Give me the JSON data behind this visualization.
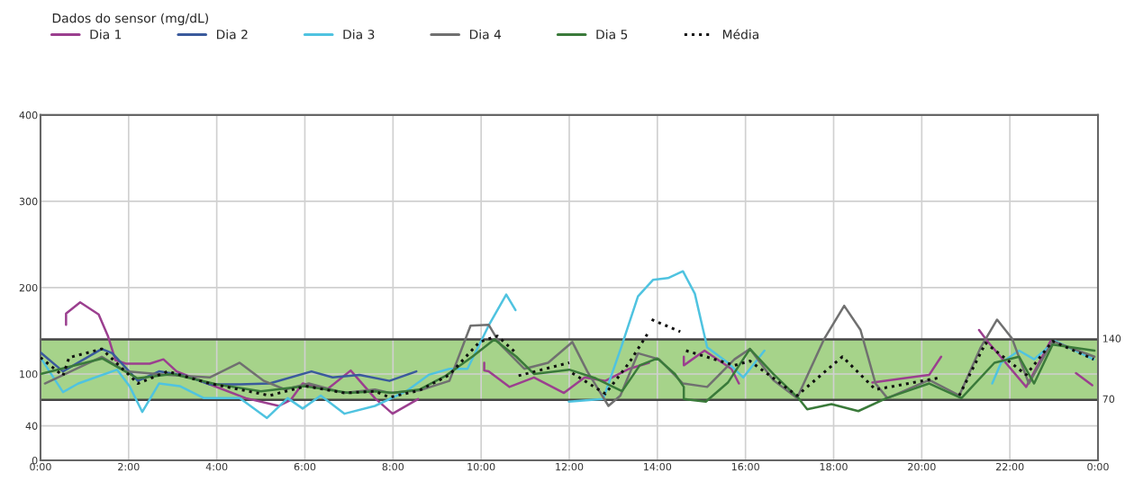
{
  "chart_data": {
    "type": "line",
    "title": "Dados do sensor (mg/dL)",
    "xlim": [
      0,
      24
    ],
    "ylim": [
      0,
      400
    ],
    "xticks": [
      {
        "value": 0,
        "label": "0:00"
      },
      {
        "value": 2,
        "label": "2:00"
      },
      {
        "value": 4,
        "label": "4:00"
      },
      {
        "value": 6,
        "label": "6:00"
      },
      {
        "value": 8,
        "label": "8:00"
      },
      {
        "value": 10,
        "label": "10:00"
      },
      {
        "value": 12,
        "label": "12:00"
      },
      {
        "value": 14,
        "label": "14:00"
      },
      {
        "value": 16,
        "label": "16:00"
      },
      {
        "value": 18,
        "label": "18:00"
      },
      {
        "value": 20,
        "label": "20:00"
      },
      {
        "value": 22,
        "label": "22:00"
      },
      {
        "value": 24,
        "label": "0:00"
      }
    ],
    "yticks": [
      0,
      40,
      100,
      200,
      300,
      400
    ],
    "grid": true,
    "legend": "top",
    "marker": "none",
    "bands": [
      {
        "axis": "y",
        "from": 70,
        "to": 140,
        "color": "#a6d38a"
      }
    ],
    "ref_lines": [
      {
        "axis": "y",
        "value": 140,
        "label": "140",
        "color": "#444444"
      },
      {
        "axis": "y",
        "value": 70,
        "label": "70",
        "color": "#444444"
      }
    ],
    "series": [
      {
        "name": "Dia 1",
        "color": "#9b3f8f",
        "line_style": "solid",
        "x": [
          0.58,
          0.58,
          0.9,
          1.32,
          1.53,
          1.7,
          1.94,
          2.48,
          2.79,
          3.09,
          3.84,
          4.66,
          5.41,
          5.68,
          5.95,
          6.5,
          7.04,
          7.59,
          7.99,
          8.57,
          8.6,
          10.07,
          10.07,
          10.17,
          10.64,
          11.2,
          11.88,
          12.35,
          12.82,
          13.36,
          13.81,
          13.85,
          14.6,
          14.6,
          15.07,
          15.68,
          15.85,
          15.9,
          18.88,
          20.17,
          20.44,
          20.5,
          21.3,
          21.49,
          22.37,
          22.92,
          23.0,
          23.5,
          23.87
        ],
        "values": [
          157,
          170,
          183,
          169,
          144,
          116,
          112,
          112,
          117,
          103,
          88,
          72,
          63,
          70,
          89,
          82,
          104,
          72,
          54,
          71,
          null,
          113,
          104,
          103,
          85,
          96,
          78,
          96,
          92,
          106,
          113,
          null,
          120,
          110,
          127,
          106,
          89,
          null,
          90,
          99,
          120,
          null,
          151,
          138,
          85,
          138,
          null,
          101,
          87
        ]
      },
      {
        "name": "Dia 2",
        "color": "#3a5a9c",
        "line_style": "solid",
        "x": [
          0,
          0.51,
          1.39,
          1.63,
          2.21,
          2.69,
          3.3,
          3.84,
          4.52,
          5.2,
          6.15,
          6.63,
          7.24,
          7.92,
          8.53
        ],
        "values": [
          125,
          103,
          129,
          124,
          92,
          103,
          98,
          88,
          88,
          89,
          103,
          96,
          99,
          92,
          103
        ]
      },
      {
        "name": "Dia 3",
        "color": "#4fc3e0",
        "line_style": "solid",
        "x": [
          0,
          0.51,
          0.86,
          1.74,
          2.02,
          2.31,
          2.69,
          3.16,
          3.71,
          4.52,
          5.14,
          5.61,
          5.95,
          6.36,
          6.9,
          7.59,
          8.3,
          8.81,
          9.28,
          9.69,
          10.17,
          10.57,
          10.78,
          11.5,
          11.99,
          12.77,
          13.18,
          13.56,
          13.9,
          14.24,
          14.58,
          14.85,
          15.13,
          15.6,
          15.95,
          16.43,
          17.0,
          21.6,
          21.8,
          22.21,
          22.55,
          23.03,
          23.9
        ],
        "values": [
          119,
          79,
          89,
          105,
          86,
          56,
          89,
          86,
          72,
          72,
          49,
          72,
          60,
          75,
          54,
          63,
          80,
          99,
          106,
          106,
          156,
          192,
          174,
          null,
          68,
          71,
          131,
          190,
          209,
          211,
          219,
          193,
          131,
          113,
          96,
          127,
          null,
          89,
          113,
          127,
          117,
          138,
          117
        ]
      },
      {
        "name": "Dia 4",
        "color": "#707070",
        "line_style": "solid",
        "x": [
          0.1,
          1.39,
          1.94,
          2.89,
          3.84,
          4.52,
          5.07,
          5.55,
          6.09,
          6.9,
          7.59,
          7.92,
          8.6,
          9.28,
          9.76,
          10.17,
          10.44,
          10.98,
          11.52,
          12.07,
          12.41,
          12.89,
          13.16,
          13.56,
          14.04,
          14.58,
          15.13,
          15.75,
          16.1,
          16.63,
          17.17,
          17.79,
          18.24,
          18.61,
          18.95,
          19.22,
          20.17,
          20.85,
          21.33,
          21.71,
          22.05,
          22.43,
          22.97,
          23.92
        ],
        "values": [
          89,
          120,
          103,
          99,
          96,
          113,
          92,
          82,
          89,
          78,
          82,
          78,
          81,
          92,
          156,
          157,
          134,
          106,
          113,
          137,
          103,
          63,
          75,
          124,
          117,
          89,
          85,
          117,
          129,
          93,
          72,
          141,
          179,
          151,
          89,
          72,
          93,
          75,
          130,
          163,
          141,
          89,
          138,
          120
        ]
      },
      {
        "name": "Dia 5",
        "color": "#3a7a3a",
        "line_style": "solid",
        "x": [
          0,
          1.4,
          2.2,
          3,
          4,
          5,
          6,
          7,
          7.6,
          8.0,
          8.6,
          9.2,
          9.8,
          10.3,
          10.8,
          11.2,
          12.0,
          12.6,
          13.2,
          13.6,
          14.0,
          14.4,
          14.6,
          14.6,
          15.1,
          15.6,
          16.1,
          16.63,
          17.2,
          17.4,
          17.95,
          18.56,
          19.2,
          20.17,
          20.9,
          21.65,
          22.21,
          22.55,
          22.97,
          23.92
        ],
        "values": [
          100,
          118,
          95,
          100,
          88,
          80,
          86,
          78,
          80,
          78,
          82,
          98,
          120,
          140,
          120,
          100,
          105,
          95,
          80,
          110,
          118,
          100,
          85,
          71,
          68,
          90,
          129,
          100,
          72,
          59,
          65,
          57,
          72,
          89,
          72,
          113,
          120,
          89,
          134,
          127
        ]
      },
      {
        "name": "Média",
        "color": "#111111",
        "line_style": "dotted",
        "x": [
          0,
          0.51,
          0.65,
          1.39,
          2.21,
          2.89,
          3.84,
          5.2,
          6.02,
          6.9,
          7.59,
          7.92,
          8.6,
          9.28,
          9.96,
          10.37,
          10.78,
          10.8,
          10.85,
          12.0,
          12.03,
          12.07,
          12.82,
          13.36,
          13.77,
          13.82,
          13.87,
          14.52,
          14.58,
          14.65,
          15.75,
          16.1,
          17.17,
          18.2,
          18.95,
          20.44,
          20.6,
          20.85,
          21.45,
          22.37,
          22.97,
          23.9
        ],
        "values": [
          119,
          98,
          119,
          129,
          89,
          103,
          89,
          75,
          86,
          78,
          80,
          73,
          81,
          99,
          137,
          144,
          125,
          null,
          98,
          113,
          null,
          101,
          77,
          113,
          146,
          null,
          163,
          149,
          null,
          127,
          110,
          115,
          75,
          120,
          82,
          96,
          null,
          75,
          136,
          99,
          138,
          117
        ]
      }
    ]
  }
}
